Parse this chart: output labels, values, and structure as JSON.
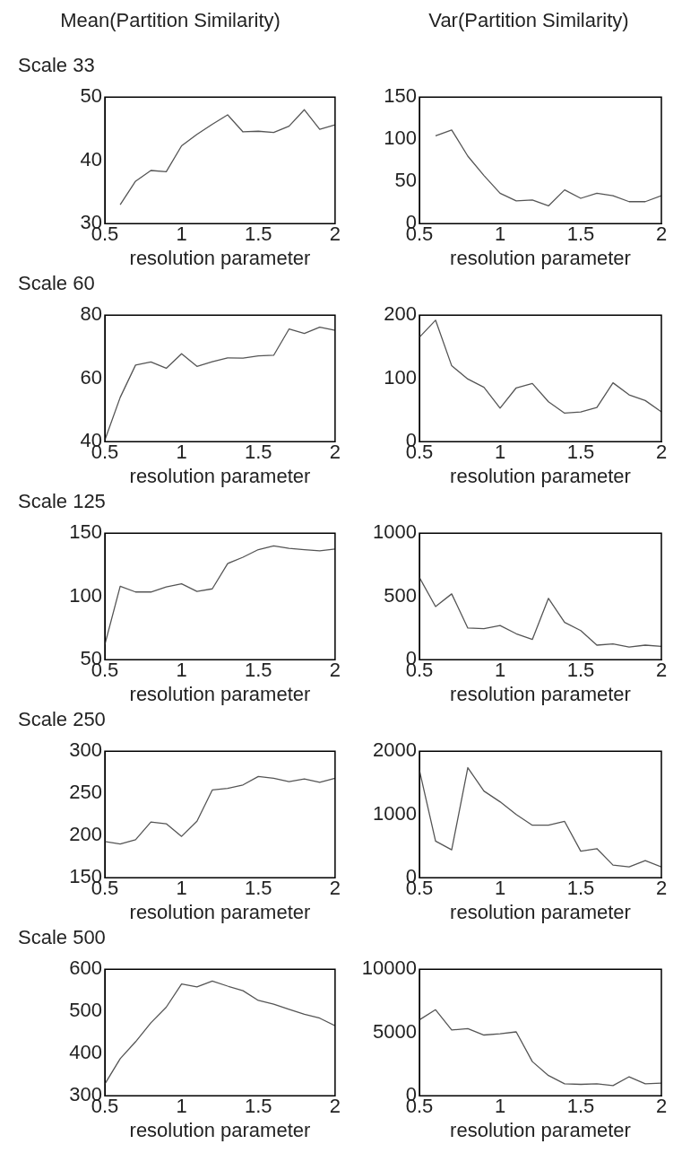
{
  "chart_data": [
    {
      "type": "line",
      "title": "Mean(Partition Similarity)",
      "subtitle": "Scale 33",
      "xlabel": "resolution parameter",
      "x": [
        0.6,
        0.7,
        0.8,
        0.9,
        1.0,
        1.1,
        1.2,
        1.3,
        1.4,
        1.5,
        1.6,
        1.7,
        1.8,
        1.9,
        2.0
      ],
      "values": [
        33,
        36.7,
        38.4,
        38.2,
        42.3,
        44.1,
        45.7,
        47.2,
        44.5,
        44.6,
        44.4,
        45.4,
        48,
        44.9,
        45.6
      ],
      "color": "#555555",
      "xlim": [
        0.5,
        2
      ],
      "xticks": [
        0.5,
        1,
        1.5,
        2
      ],
      "ylim": [
        30,
        50
      ],
      "yticks": [
        30,
        40,
        50
      ]
    },
    {
      "type": "line",
      "title": "Var(Partition Similarity)",
      "xlabel": "resolution parameter",
      "x": [
        0.6,
        0.7,
        0.8,
        0.9,
        1.0,
        1.1,
        1.2,
        1.3,
        1.4,
        1.5,
        1.6,
        1.7,
        1.8,
        1.9,
        2.0
      ],
      "values": [
        104,
        111,
        80,
        57,
        36,
        27,
        28,
        21,
        40,
        30,
        36,
        33,
        26,
        26,
        33
      ],
      "color": "#555555",
      "xlim": [
        0.5,
        2
      ],
      "xticks": [
        0.5,
        1,
        1.5,
        2
      ],
      "ylim": [
        0,
        150
      ],
      "yticks": [
        0,
        50,
        100,
        150
      ]
    },
    {
      "type": "line",
      "subtitle": "Scale 60",
      "xlabel": "resolution parameter",
      "x": [
        0.5,
        0.6,
        0.7,
        0.8,
        0.9,
        1.0,
        1.1,
        1.2,
        1.3,
        1.4,
        1.5,
        1.6,
        1.7,
        1.8,
        1.9,
        2.0
      ],
      "values": [
        40.5,
        54,
        64.2,
        65.2,
        63.2,
        67.8,
        63.8,
        65.3,
        66.5,
        66.4,
        67.1,
        67.3,
        75.6,
        74.2,
        76.2,
        75.2
      ],
      "color": "#555555",
      "xlim": [
        0.5,
        2
      ],
      "xticks": [
        0.5,
        1,
        1.5,
        2
      ],
      "ylim": [
        40,
        80
      ],
      "yticks": [
        40,
        60,
        80
      ]
    },
    {
      "type": "line",
      "xlabel": "resolution parameter",
      "x": [
        0.5,
        0.6,
        0.7,
        0.8,
        0.9,
        1.0,
        1.1,
        1.2,
        1.3,
        1.4,
        1.5,
        1.6,
        1.7,
        1.8,
        1.9,
        2.0
      ],
      "values": [
        165,
        192,
        120,
        99,
        86,
        53,
        85,
        92,
        63,
        45,
        47,
        54,
        93,
        74,
        65,
        47
      ],
      "color": "#555555",
      "xlim": [
        0.5,
        2
      ],
      "xticks": [
        0.5,
        1,
        1.5,
        2
      ],
      "ylim": [
        0,
        200
      ],
      "yticks": [
        0,
        100,
        200
      ]
    },
    {
      "type": "line",
      "subtitle": "Scale 125",
      "xlabel": "resolution parameter",
      "x": [
        0.5,
        0.6,
        0.7,
        0.8,
        0.9,
        1.0,
        1.1,
        1.2,
        1.3,
        1.4,
        1.5,
        1.6,
        1.7,
        1.8,
        1.9,
        2.0
      ],
      "values": [
        62,
        108,
        103.5,
        103.5,
        107.5,
        110,
        104,
        106,
        126,
        131,
        137,
        140,
        138,
        137,
        136,
        137.5
      ],
      "color": "#555555",
      "xlim": [
        0.5,
        2
      ],
      "xticks": [
        0.5,
        1,
        1.5,
        2
      ],
      "ylim": [
        50,
        150
      ],
      "yticks": [
        50,
        100,
        150
      ]
    },
    {
      "type": "line",
      "xlabel": "resolution parameter",
      "x": [
        0.5,
        0.6,
        0.7,
        0.8,
        0.9,
        1.0,
        1.1,
        1.2,
        1.3,
        1.4,
        1.5,
        1.6,
        1.7,
        1.8,
        1.9,
        2.0
      ],
      "values": [
        650,
        420,
        520,
        250,
        245,
        270,
        205,
        160,
        485,
        295,
        230,
        115,
        125,
        100,
        115,
        105
      ],
      "color": "#555555",
      "xlim": [
        0.5,
        2
      ],
      "xticks": [
        0.5,
        1,
        1.5,
        2
      ],
      "ylim": [
        0,
        1000
      ],
      "yticks": [
        0,
        500,
        1000
      ]
    },
    {
      "type": "line",
      "subtitle": "Scale 250",
      "xlabel": "resolution parameter",
      "x": [
        0.5,
        0.6,
        0.7,
        0.8,
        0.9,
        1.0,
        1.1,
        1.2,
        1.3,
        1.4,
        1.5,
        1.6,
        1.7,
        1.8,
        1.9,
        2.0
      ],
      "values": [
        193,
        190,
        195,
        216,
        214,
        199,
        217,
        254,
        256,
        260,
        270,
        268,
        264,
        267,
        263,
        268
      ],
      "color": "#555555",
      "xlim": [
        0.5,
        2
      ],
      "xticks": [
        0.5,
        1,
        1.5,
        2
      ],
      "ylim": [
        150,
        300
      ],
      "yticks": [
        150,
        200,
        250,
        300
      ]
    },
    {
      "type": "line",
      "xlabel": "resolution parameter",
      "x": [
        0.5,
        0.6,
        0.7,
        0.8,
        0.9,
        1.0,
        1.1,
        1.2,
        1.3,
        1.4,
        1.5,
        1.6,
        1.7,
        1.8,
        1.9,
        2.0
      ],
      "values": [
        1700,
        580,
        440,
        1740,
        1370,
        1200,
        1000,
        830,
        830,
        890,
        420,
        460,
        200,
        170,
        270,
        170
      ],
      "color": "#555555",
      "xlim": [
        0.5,
        2
      ],
      "xticks": [
        0.5,
        1,
        1.5,
        2
      ],
      "ylim": [
        0,
        2000
      ],
      "yticks": [
        0,
        1000,
        2000
      ]
    },
    {
      "type": "line",
      "subtitle": "Scale 500",
      "xlabel": "resolution parameter",
      "x": [
        0.5,
        0.6,
        0.7,
        0.8,
        0.9,
        1.0,
        1.1,
        1.2,
        1.3,
        1.4,
        1.5,
        1.6,
        1.7,
        1.8,
        1.9,
        2.0
      ],
      "values": [
        328,
        388,
        428,
        473,
        510,
        565,
        558,
        572,
        560,
        549,
        526,
        517,
        505,
        493,
        484,
        466
      ],
      "color": "#555555",
      "xlim": [
        0.5,
        2
      ],
      "xticks": [
        0.5,
        1,
        1.5,
        2
      ],
      "ylim": [
        300,
        600
      ],
      "yticks": [
        300,
        400,
        500,
        600
      ]
    },
    {
      "type": "line",
      "xlabel": "resolution parameter",
      "x": [
        0.5,
        0.6,
        0.7,
        0.8,
        0.9,
        1.0,
        1.1,
        1.2,
        1.3,
        1.4,
        1.5,
        1.6,
        1.7,
        1.8,
        1.9,
        2.0
      ],
      "values": [
        6000,
        6800,
        5200,
        5300,
        4800,
        4900,
        5050,
        2700,
        1600,
        950,
        900,
        950,
        800,
        1500,
        950,
        1000
      ],
      "color": "#555555",
      "xlim": [
        0.5,
        2
      ],
      "xticks": [
        0.5,
        1,
        1.5,
        2
      ],
      "ylim": [
        0,
        10000
      ],
      "yticks": [
        0,
        5000,
        10000
      ]
    }
  ]
}
